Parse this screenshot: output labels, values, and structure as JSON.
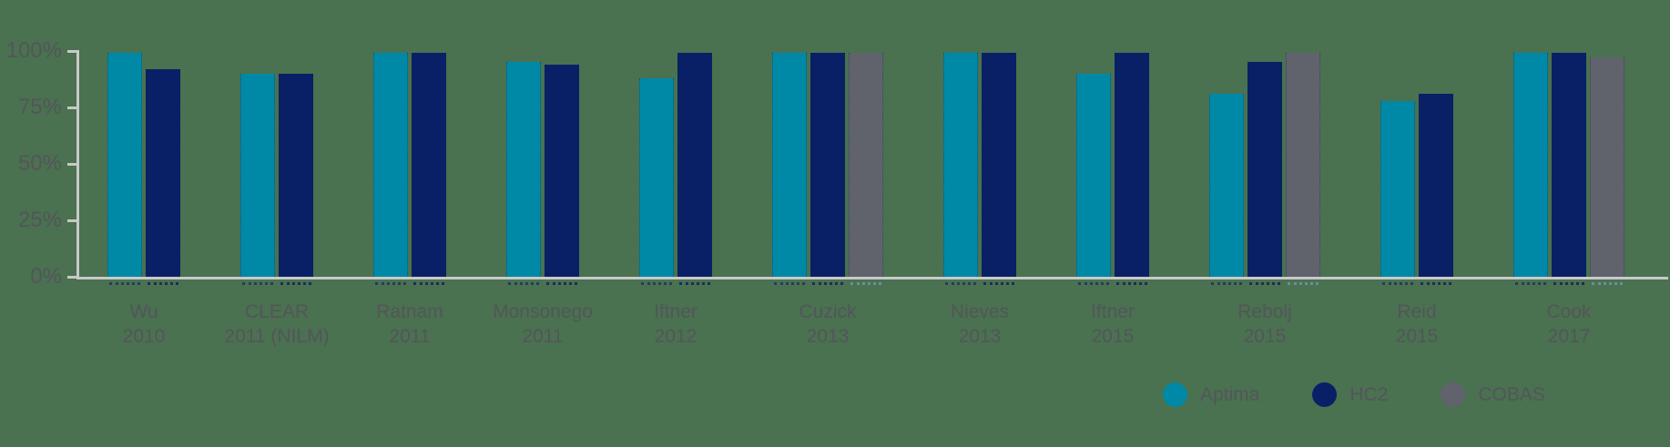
{
  "colors": {
    "background": "#4A7150",
    "axis": "#C8C9C7",
    "text": "#53565A",
    "aptima": "#0089A6",
    "hc2": "#0A2066",
    "cobas": "#60636C"
  },
  "chart_data": {
    "type": "bar",
    "title": "",
    "xlabel": "",
    "ylabel": "",
    "ylim": [
      0,
      100
    ],
    "grid": false,
    "legend_position": "bottom-right",
    "yticks": [
      {
        "value": 0,
        "label": "0%"
      },
      {
        "value": 25,
        "label": "25%"
      },
      {
        "value": 50,
        "label": "50%"
      },
      {
        "value": 75,
        "label": "75%"
      },
      {
        "value": 100,
        "label": "100%"
      }
    ],
    "series": [
      {
        "name": "Aptima",
        "color": "#0089A6",
        "dot_color": "rgba(20,45,100,0.75)"
      },
      {
        "name": "HC2",
        "color": "#0A2066",
        "dot_color": "rgba(14,35,95,0.85)"
      },
      {
        "name": "COBAS",
        "color": "#60636C",
        "dot_color": "rgba(111,143,168,0.9)"
      }
    ],
    "groups": [
      {
        "label": "Wu",
        "sublabel": "2010",
        "values": {
          "Aptima": 99,
          "HC2": 92,
          "COBAS": null
        }
      },
      {
        "label": "CLEAR",
        "sublabel": "2011 (NILM)",
        "values": {
          "Aptima": 90,
          "HC2": 90,
          "COBAS": null
        }
      },
      {
        "label": "Ratnam",
        "sublabel": "2011",
        "values": {
          "Aptima": 99,
          "HC2": 99,
          "COBAS": null
        }
      },
      {
        "label": "Monsonego",
        "sublabel": "2011",
        "values": {
          "Aptima": 95,
          "HC2": 94,
          "COBAS": null
        }
      },
      {
        "label": "Iftner",
        "sublabel": "2012",
        "values": {
          "Aptima": 88,
          "HC2": 99,
          "COBAS": null
        }
      },
      {
        "label": "Cuzick",
        "sublabel": "2013",
        "values": {
          "Aptima": 99,
          "HC2": 99,
          "COBAS": 99
        }
      },
      {
        "label": "Nieves",
        "sublabel": "2013",
        "values": {
          "Aptima": 99,
          "HC2": 99,
          "COBAS": null
        }
      },
      {
        "label": "Iftner",
        "sublabel": "2015",
        "values": {
          "Aptima": 90,
          "HC2": 99,
          "COBAS": null
        }
      },
      {
        "label": "Rebolj",
        "sublabel": "2015",
        "values": {
          "Aptima": 81,
          "HC2": 95,
          "COBAS": 99
        }
      },
      {
        "label": "Reid",
        "sublabel": "2015",
        "values": {
          "Aptima": 78,
          "HC2": 81,
          "COBAS": null
        }
      },
      {
        "label": "Cook",
        "sublabel": "2017",
        "values": {
          "Aptima": 99,
          "HC2": 99,
          "COBAS": 97
        }
      }
    ]
  },
  "legend": {
    "items": [
      {
        "label": "Aptima",
        "color": "#0089A6"
      },
      {
        "label": "HC2",
        "color": "#0A2066"
      },
      {
        "label": "COBAS",
        "color": "#60636C"
      }
    ]
  }
}
